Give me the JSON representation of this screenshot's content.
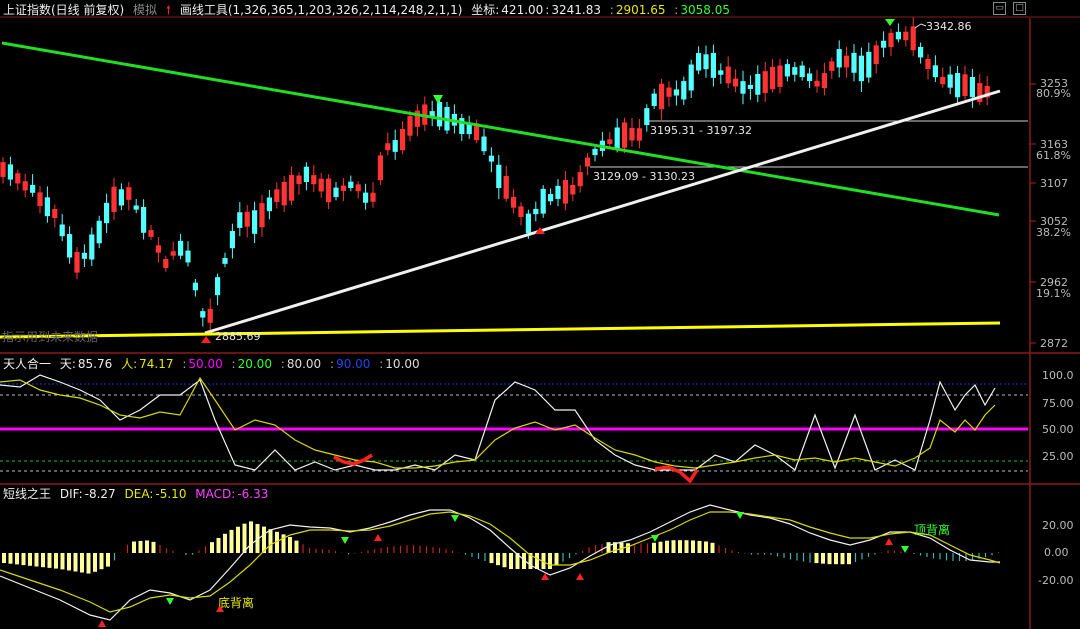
{
  "main": {
    "title": "上证指数(日线 前复权)",
    "mode": "模拟",
    "tool_label": "画线工具",
    "tool_params": "(1,326,365,1,203,326,2,114,248,2,1,1)",
    "coord_label": "坐标:",
    "coord_x": "421.00",
    "coord_y": "3241.83",
    "val_yellow": "2901.65",
    "val_green": "3058.05",
    "y_ticks": [
      "3253",
      "3163",
      "3107",
      "3052",
      "2962",
      "2872"
    ],
    "pct_ticks": [
      "80.9%",
      "61.8%",
      "38.2%",
      "19.1%"
    ],
    "annotations": {
      "high": "3342.86",
      "low": "2885.69",
      "fib1": "3195.31 - 3197.32",
      "fib2": "3129.09 - 3130.23",
      "watermark": "指示用到未来数据"
    }
  },
  "osc1": {
    "name": "天人合一",
    "tian_label": "天:",
    "tian_val": "85.76",
    "ren_label": "人:",
    "ren_val": "74.17",
    "l1": "50.00",
    "l2": "20.00",
    "l3": "80.00",
    "l4": "90.00",
    "l5": "10.00",
    "y_ticks": [
      "100.0",
      "75.00",
      "50.00",
      "25.00"
    ]
  },
  "osc2": {
    "name": "短线之王",
    "dif_label": "DIF:",
    "dif_val": "-8.27",
    "dea_label": "DEA:",
    "dea_val": "-5.10",
    "macd_label": "MACD:",
    "macd_val": "-6.33",
    "y_ticks": [
      "20.00",
      "0.00",
      "-20.00"
    ],
    "div_top": "顶背离",
    "div_bottom": "底背离"
  },
  "colors": {
    "up": "#ff3333",
    "down": "#54ffff",
    "green_line": "#22dd22",
    "white_line": "#f0f0f0",
    "yellow_line": "#ffff00",
    "magenta": "#ff00ff",
    "yellow_text": "#e8e800",
    "green_text": "#33ff33"
  },
  "icons": [
    "up-arrow-icon",
    "down-arrow-icon",
    "minimize-icon",
    "maximize-icon"
  ]
}
